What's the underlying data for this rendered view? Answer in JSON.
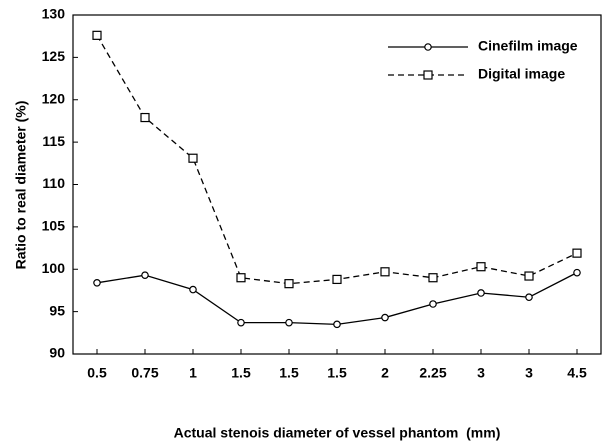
{
  "chart_data": {
    "type": "line",
    "xlabel": "Actual stenois diameter of vessel phantom  (mm)",
    "ylabel": "Ratio to real diameter (%)",
    "categories": [
      "0.5",
      "0.75",
      "1",
      "1.5",
      "1.5",
      "1.5",
      "2",
      "2.25",
      "3",
      "3",
      "4.5"
    ],
    "series": [
      {
        "name": "Cinefilm image",
        "color": "#000000",
        "marker": "circle",
        "linestyle": "solid",
        "values": [
          98.4,
          99.3,
          97.6,
          93.7,
          93.7,
          93.5,
          94.3,
          95.9,
          97.2,
          96.7,
          99.6
        ]
      },
      {
        "name": "Digital image",
        "color": "#000000",
        "marker": "square",
        "linestyle": "dashed",
        "values": [
          127.6,
          117.9,
          113.1,
          99.0,
          98.3,
          98.8,
          99.7,
          99.0,
          100.3,
          99.2,
          101.9
        ]
      }
    ],
    "ylim": [
      90,
      130
    ],
    "yticks": [
      90,
      95,
      100,
      105,
      110,
      115,
      120,
      125,
      130
    ],
    "grid": false,
    "legend": "upper right"
  }
}
